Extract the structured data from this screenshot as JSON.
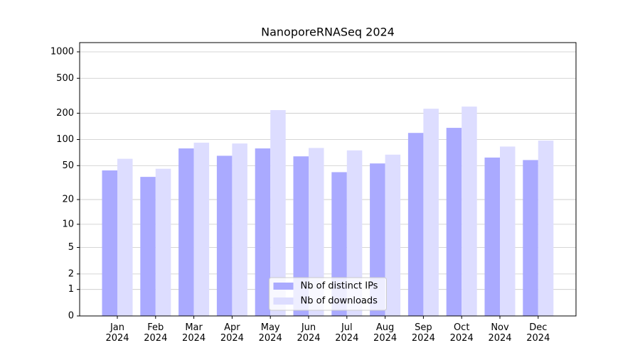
{
  "chart_data": {
    "type": "bar",
    "title": "NanoporeRNASeq 2024",
    "categories": [
      "Jan\n2024",
      "Feb\n2024",
      "Mar\n2024",
      "Apr\n2024",
      "May\n2024",
      "Jun\n2024",
      "Jul\n2024",
      "Aug\n2024",
      "Sep\n2024",
      "Oct\n2024",
      "Nov\n2024",
      "Dec\n2024"
    ],
    "series": [
      {
        "name": "Nb of distinct IPs",
        "color": "#aaaaff",
        "values": [
          44,
          37,
          79,
          65,
          79,
          64,
          42,
          53,
          119,
          136,
          62,
          58
        ]
      },
      {
        "name": "Nb of downloads",
        "color": "#ddddff",
        "values": [
          60,
          46,
          92,
          90,
          217,
          80,
          75,
          67,
          225,
          238,
          83,
          97
        ]
      }
    ],
    "yscale": "log1p",
    "ylim": [
      0,
      1273
    ],
    "yticks": [
      0,
      1,
      2,
      5,
      10,
      20,
      50,
      100,
      200,
      500,
      1000
    ],
    "grid": true,
    "legend": "lower center"
  }
}
